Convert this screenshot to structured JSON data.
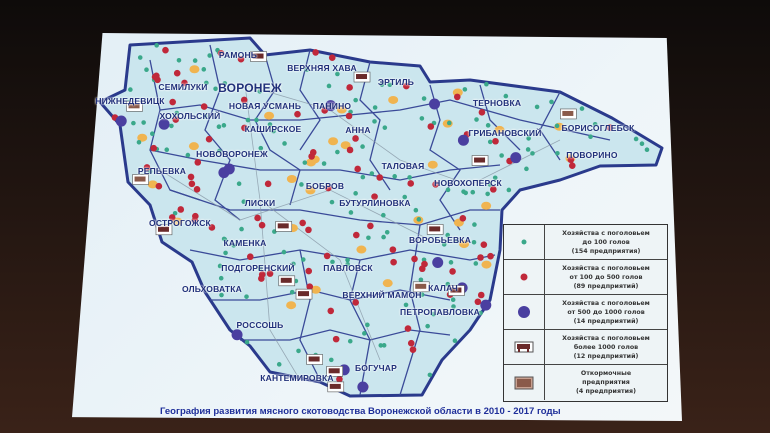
{
  "caption": "География развития мясного скотоводства Воронежской области в 2010 - 2017 годы",
  "colors": {
    "border": "#2a3a8c",
    "map_fill": "#cbe6ee",
    "small_dot": "#3aa88a",
    "medium_dot": "#c0283a",
    "large_dot": "#4a3fa0",
    "city": "#f0b450"
  },
  "districts": [
    {
      "name": "РАМОНЬ"
    },
    {
      "name": "ВЕРХНЯЯ ХАВА"
    },
    {
      "name": "ЭРТИЛЬ"
    },
    {
      "name": "СЕМИЛУКИ"
    },
    {
      "name": "ВОРОНЕЖ"
    },
    {
      "name": "НОВАЯ УСМАНЬ"
    },
    {
      "name": "ПАНИНО"
    },
    {
      "name": "НИЖНЕДЕВИЦК"
    },
    {
      "name": "ХОХОЛЬСКИЙ"
    },
    {
      "name": "КАШИРСКОЕ"
    },
    {
      "name": "АННА"
    },
    {
      "name": "ТЕРНОВКА"
    },
    {
      "name": "ГРИБАНОВСКИЙ"
    },
    {
      "name": "БОРИСОГЛЕБСК"
    },
    {
      "name": "НОВОВОРОНЕЖ"
    },
    {
      "name": "ПОВОРИНО"
    },
    {
      "name": "ТАЛОВАЯ"
    },
    {
      "name": "РЕПЬЕВКА"
    },
    {
      "name": "БОБРОВ"
    },
    {
      "name": "НОВОХОПЕРСК"
    },
    {
      "name": "ЛИСКИ"
    },
    {
      "name": "БУТУРЛИНОВКА"
    },
    {
      "name": "ОСТРОГОЖСК"
    },
    {
      "name": "КАМЕНКА"
    },
    {
      "name": "ВОРОБЬЕВКА"
    },
    {
      "name": "ПОДГОРЕНСКИЙ"
    },
    {
      "name": "ПАВЛОВСК"
    },
    {
      "name": "ОЛЬХОВАТКА"
    },
    {
      "name": "КАЛАЧ"
    },
    {
      "name": "ВЕРХНИЙ МАМОН"
    },
    {
      "name": "ПЕТРОПАВЛОВКА"
    },
    {
      "name": "РОССОШЬ"
    },
    {
      "name": "КАНТЕМИРОВКА"
    },
    {
      "name": "БОГУЧАР"
    }
  ],
  "legend": [
    {
      "icon": "small-dot",
      "line1": "Хозяйства с поголовьем",
      "line2": "до 100 голов",
      "count": "(154 предприятия)"
    },
    {
      "icon": "medium-dot",
      "line1": "Хозяйства с поголовьем",
      "line2": "от 100 до 500 голов",
      "count": "(89 предприятий)"
    },
    {
      "icon": "large-dot",
      "line1": "Хозяйства с поголовьем",
      "line2": "от 500 до 1000 голов",
      "count": "(14 предприятий)"
    },
    {
      "icon": "cow-icon",
      "line1": "Хозяйства с поголовьем",
      "line2": "более 1000 голов",
      "count": "(12 предприятий)"
    },
    {
      "icon": "feedlot-icon",
      "line1": "Откормочные",
      "line2": "предприятия",
      "count": "(4 предприятия)"
    }
  ]
}
